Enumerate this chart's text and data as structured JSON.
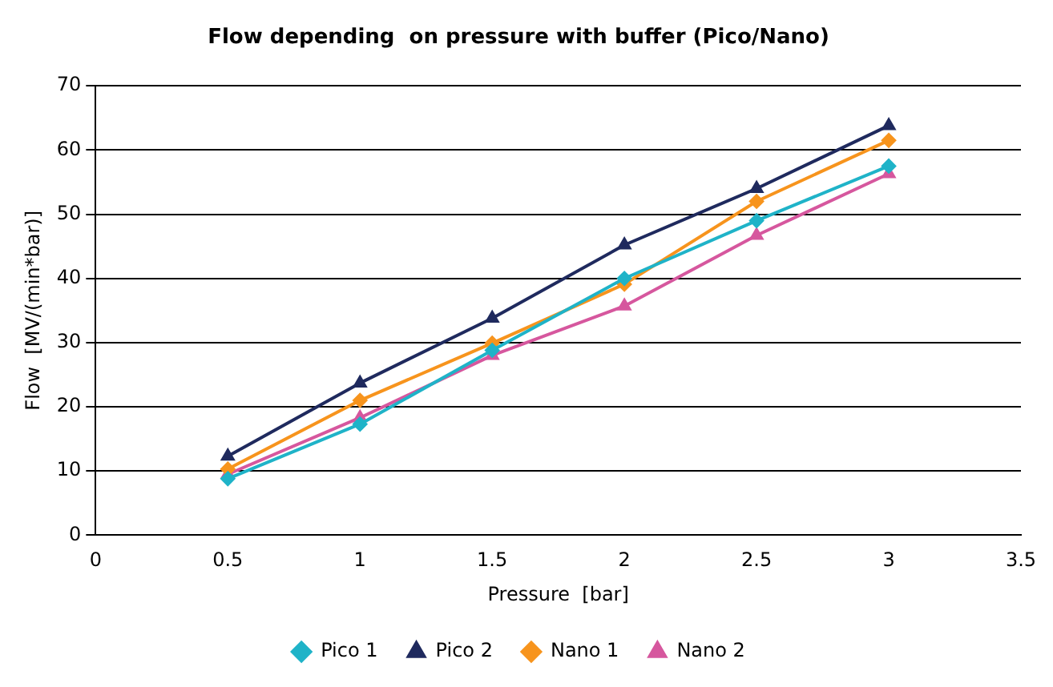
{
  "chart_data": {
    "type": "line",
    "title": "Flow depending  on pressure with buffer (Pico/Nano)",
    "xlabel": "Pressure  [bar]",
    "ylabel": "Flow  [MV/(min*bar)]",
    "x": [
      0.5,
      1,
      1.5,
      2,
      2.5,
      3
    ],
    "series": [
      {
        "name": "Pico 1",
        "color": "#1fb3c8",
        "marker": "diamond",
        "values": [
          8.8,
          17.3,
          28.8,
          40,
          49,
          57.5
        ]
      },
      {
        "name": "Pico 2",
        "color": "#1f2a5e",
        "marker": "triangle",
        "values": [
          12.3,
          23.7,
          33.8,
          45.2,
          54,
          63.8
        ]
      },
      {
        "name": "Nano 1",
        "color": "#f7941d",
        "marker": "diamond",
        "values": [
          10.3,
          21,
          29.9,
          39.1,
          52,
          61.5
        ]
      },
      {
        "name": "Nano 2",
        "color": "#d6579e",
        "marker": "triangle",
        "values": [
          9.5,
          18.3,
          28,
          35.7,
          46.7,
          56.3
        ]
      }
    ],
    "xlim": [
      0,
      3.5
    ],
    "xticks": [
      0,
      0.5,
      1,
      1.5,
      2,
      2.5,
      3,
      3.5
    ],
    "ylim": [
      0,
      70
    ],
    "yticks": [
      0,
      10,
      20,
      30,
      40,
      50,
      60,
      70
    ],
    "grid": "y",
    "legend": "bottom",
    "line_style": "solid"
  }
}
